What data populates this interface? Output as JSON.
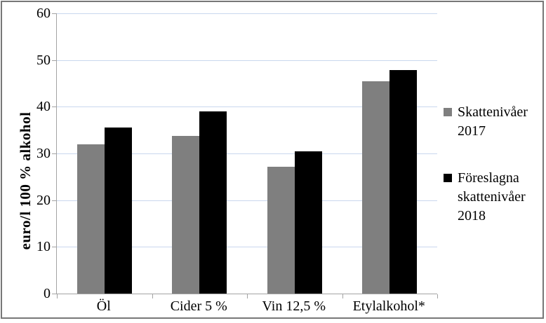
{
  "figure": {
    "background": "#ffffff",
    "border_color": "#777777"
  },
  "colors": {
    "gridline": "#c9d7ee",
    "axis": "#a3a3a3",
    "series_2017": "#7f7f7f",
    "series_2018": "#000000"
  },
  "y_axis": {
    "title": "euro/l 100 % alkohol",
    "tick_labels": [
      "0",
      "10",
      "20",
      "30",
      "40",
      "50",
      "60"
    ]
  },
  "x_axis": {
    "categories": [
      "Öl",
      "Cider 5 %",
      "Vin 12,5 %",
      "Etylalkohol*"
    ]
  },
  "legend": {
    "entries": [
      {
        "label": "Skattenivåer 2017",
        "color": "#7f7f7f"
      },
      {
        "label": "Föreslagna skattenivåer 2018",
        "color": "#000000"
      }
    ]
  },
  "chart_data": {
    "type": "bar",
    "title": "",
    "categories": [
      "Öl",
      "Cider 5 %",
      "Vin 12,5 %",
      "Etylalkohol*"
    ],
    "series": [
      {
        "name": "Skattenivåer 2017",
        "color": "#7f7f7f",
        "values": [
          32.0,
          33.7,
          27.1,
          45.5
        ]
      },
      {
        "name": "Föreslagna skattenivåer 2018",
        "color": "#000000",
        "values": [
          35.5,
          39.0,
          30.5,
          47.8
        ]
      }
    ],
    "xlabel": "",
    "ylabel": "euro/l 100 % alkohol",
    "ylim": [
      0,
      60
    ],
    "y_tick_step": 10,
    "grid": true,
    "legend_position": "right"
  }
}
